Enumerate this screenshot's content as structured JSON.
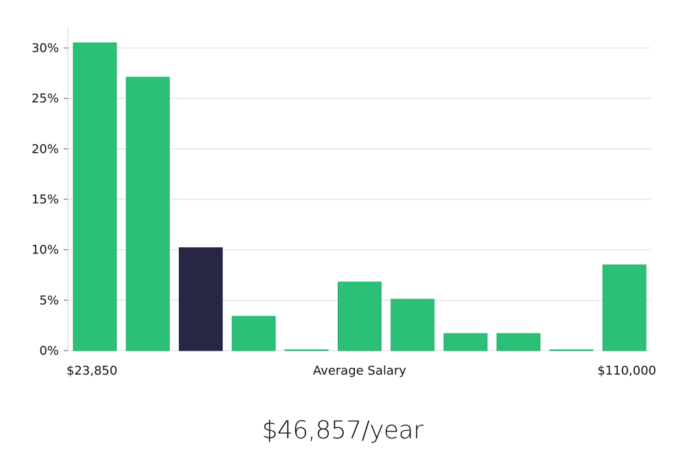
{
  "chart_data": {
    "type": "bar",
    "title": "",
    "xlabel": "Average Salary",
    "ylabel": "",
    "x_min_label": "$23,850",
    "x_max_label": "$110,000",
    "ylim": [
      0,
      32
    ],
    "y_ticks": [
      0,
      5,
      10,
      15,
      20,
      25,
      30
    ],
    "y_tick_labels": [
      "0%",
      "5%",
      "10%",
      "15%",
      "20%",
      "25%",
      "30%"
    ],
    "values": [
      30.5,
      27.1,
      10.2,
      3.4,
      0.05,
      6.8,
      5.1,
      1.7,
      1.7,
      0.05,
      8.5
    ],
    "highlight_index": 2,
    "colors": {
      "bar": "#2bbf78",
      "bar_edge": "#1fae68",
      "highlight": "#272645",
      "grid": "#d9d9d9",
      "axis": "#cccccc"
    }
  },
  "summary": {
    "salary": "$46,857/year"
  }
}
